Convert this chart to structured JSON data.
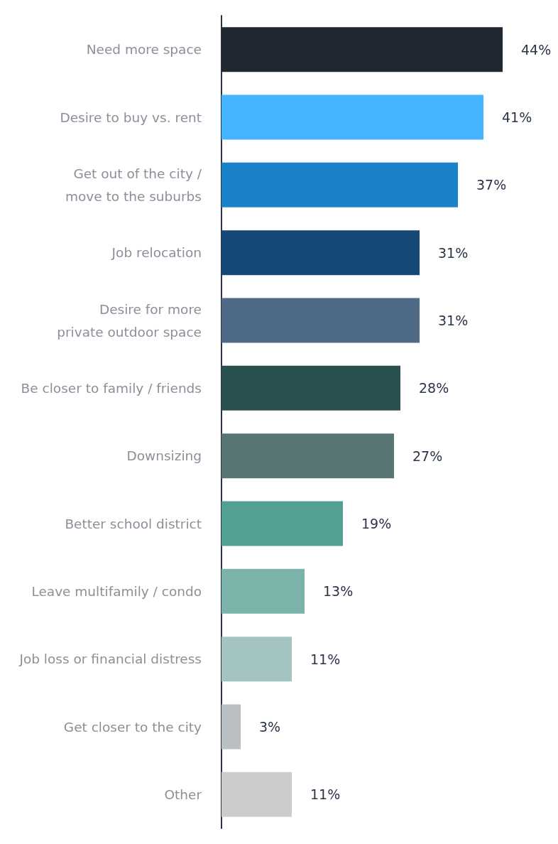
{
  "chart_data": {
    "type": "bar",
    "orientation": "horizontal",
    "tick_labels": "y",
    "categories": [
      "Need more space",
      "Desire to buy vs. rent",
      "Get out of the city /\nmove to the suburbs",
      "Job relocation",
      "Desire for more\nprivate outdoor space",
      "Be closer to family / friends",
      "Downsizing",
      "Better school district",
      "Leave multifamily / condo",
      "Job loss or financial distress",
      "Get closer to the city",
      "Other"
    ],
    "values": [
      44,
      41,
      37,
      31,
      31,
      28,
      27,
      19,
      13,
      11,
      3,
      11
    ],
    "value_labels": [
      "44%",
      "41%",
      "37%",
      "31%",
      "31%",
      "28%",
      "27%",
      "19%",
      "13%",
      "11%",
      "3%",
      "11%"
    ],
    "colors": [
      "#1f2730",
      "#45b3ff",
      "#1a82c9",
      "#154777",
      "#4f6a87",
      "#27504e",
      "#587673",
      "#52a094",
      "#7bb3aa",
      "#a4c4c1",
      "#b9bfc3",
      "#cccccc"
    ]
  }
}
